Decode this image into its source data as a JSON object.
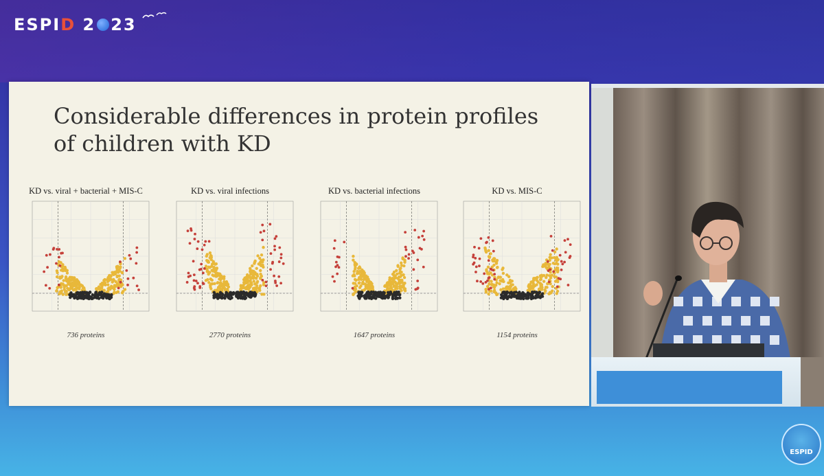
{
  "brand": {
    "logo_prefix": "ESPI",
    "logo_d": "D",
    "logo_year_a": "2",
    "logo_year_b": "23",
    "bottom_logo": "ESPID"
  },
  "slide": {
    "title": "Considerable differences in protein profiles of children with KD",
    "panels": [
      {
        "title": "KD vs. viral + bacterial + MIS-C",
        "count": "736 proteins"
      },
      {
        "title": "KD vs. viral infections",
        "count": "2770 proteins"
      },
      {
        "title": "KD vs. bacterial infections",
        "count": "1647 proteins"
      },
      {
        "title": "KD vs. MIS-C",
        "count": "1154 proteins"
      }
    ]
  },
  "colors": {
    "ns": "#2b2b2b",
    "logfc": "#6e7e3a",
    "pvalue": "#e8b83a",
    "both": "#c5403a",
    "slide_bg": "#f4f2e6"
  }
}
